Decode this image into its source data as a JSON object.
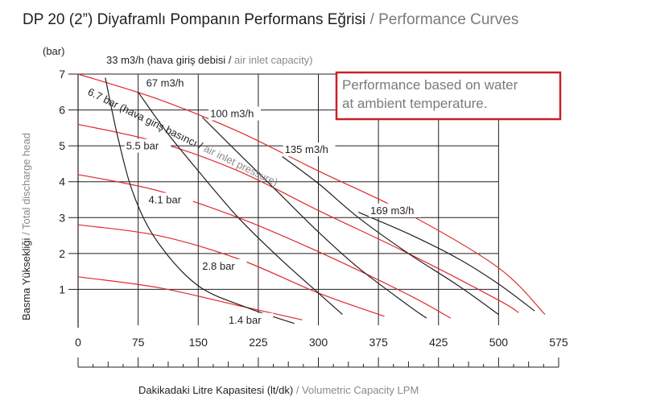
{
  "page": {
    "title_main": "DP 20 (2”) Diyaframlı Pompanın Performans Eğrisi",
    "title_sep": " / ",
    "title_secondary": "Performance Curves",
    "note_line1": "Performance based on water",
    "note_line2": "at ambient temperature."
  },
  "chart_data": {
    "type": "line",
    "title": "DP 20 (2”) Diyaframlı Pompanın Performans Eğrisi / Performance Curves",
    "xlabel": "Dakikadaki Litre Kapasitesi (lt/dk) / Volumetric Capacity LPM",
    "xlabel_primary": "Dakikadaki Litre Kapasitesi (lt/dk)",
    "xlabel_secondary": "Volumetric Capacity LPM",
    "ylabel": "Basma Yüksekliği / Total discharge head",
    "ylabel_primary": "Basma Yüksekliği",
    "ylabel_secondary": "Total discharge head",
    "yunit": "(bar)",
    "xlim": [
      0,
      575
    ],
    "ylim": [
      0,
      7
    ],
    "xticks": [
      0,
      75,
      150,
      225,
      300,
      375,
      425,
      500,
      575
    ],
    "xtick_labels": [
      "0",
      "75",
      "150",
      "225",
      "300",
      "375",
      "425",
      "500",
      "575"
    ],
    "yticks": [
      1,
      2,
      3,
      4,
      5,
      6,
      7
    ],
    "grid": true,
    "series_group_label": "6.7 bar (hava giriş basıncı / air inlet pressure)",
    "series_group_label_primary": "6.7 bar (hava giriş basıncı /",
    "series_group_label_secondary": " air inlet pressure)",
    "air_inlet_label_primary": "33 m3/h (hava giriş debisi / ",
    "air_inlet_label_secondary": "air inlet capacity)",
    "pressure_curves": [
      {
        "name": "6.7 bar",
        "color": "#e0282c",
        "points": [
          [
            0,
            7.0
          ],
          [
            100,
            6.3
          ],
          [
            200,
            5.4
          ],
          [
            300,
            4.3
          ],
          [
            400,
            3.1
          ],
          [
            500,
            1.6
          ],
          [
            558,
            0.3
          ]
        ]
      },
      {
        "name": "5.5 bar",
        "color": "#e0282c",
        "points": [
          [
            0,
            5.6
          ],
          [
            100,
            5.1
          ],
          [
            200,
            4.3
          ],
          [
            300,
            3.2
          ],
          [
            400,
            2.0
          ],
          [
            500,
            0.7
          ],
          [
            525,
            0.35
          ]
        ]
      },
      {
        "name": "4.1 bar",
        "color": "#e0282c",
        "points": [
          [
            0,
            4.2
          ],
          [
            100,
            3.75
          ],
          [
            200,
            3.0
          ],
          [
            300,
            2.05
          ],
          [
            400,
            0.85
          ],
          [
            440,
            0.2
          ]
        ]
      },
      {
        "name": "2.8 bar",
        "color": "#e0282c",
        "points": [
          [
            0,
            2.8
          ],
          [
            100,
            2.5
          ],
          [
            200,
            1.85
          ],
          [
            300,
            0.9
          ],
          [
            380,
            0.25
          ]
        ]
      },
      {
        "name": "1.4 bar",
        "color": "#e0282c",
        "points": [
          [
            0,
            1.35
          ],
          [
            100,
            1.05
          ],
          [
            200,
            0.55
          ],
          [
            280,
            0.15
          ]
        ]
      }
    ],
    "air_curves": [
      {
        "name": "33 m3/h",
        "color": "#231f20",
        "points": [
          [
            34,
            6.9
          ],
          [
            50,
            5.2
          ],
          [
            70,
            3.6
          ],
          [
            100,
            2.3
          ],
          [
            150,
            1.1
          ],
          [
            210,
            0.5
          ],
          [
            270,
            0.05
          ]
        ]
      },
      {
        "name": "67 m3/h",
        "color": "#231f20",
        "points": [
          [
            75,
            6.5
          ],
          [
            110,
            5.4
          ],
          [
            150,
            4.3
          ],
          [
            200,
            3.0
          ],
          [
            250,
            1.9
          ],
          [
            300,
            0.9
          ],
          [
            330,
            0.3
          ]
        ]
      },
      {
        "name": "100 m3/h",
        "color": "#231f20",
        "points": [
          [
            155,
            5.8
          ],
          [
            200,
            4.8
          ],
          [
            250,
            3.7
          ],
          [
            300,
            2.6
          ],
          [
            350,
            1.6
          ],
          [
            400,
            0.55
          ],
          [
            415,
            0.2
          ]
        ]
      },
      {
        "name": "135 m3/h",
        "color": "#231f20",
        "points": [
          [
            255,
            4.7
          ],
          [
            300,
            3.95
          ],
          [
            350,
            3.0
          ],
          [
            400,
            2.0
          ],
          [
            450,
            1.1
          ],
          [
            500,
            0.3
          ]
        ]
      },
      {
        "name": "169 m3/h",
        "color": "#231f20",
        "points": [
          [
            350,
            3.15
          ],
          [
            400,
            2.55
          ],
          [
            450,
            1.85
          ],
          [
            500,
            1.15
          ],
          [
            545,
            0.4
          ]
        ]
      }
    ],
    "curve_labels": [
      {
        "text": "67 m3/h",
        "x": 85,
        "y": 6.65
      },
      {
        "text": "100 m3/h",
        "x": 165,
        "y": 5.8
      },
      {
        "text": "135 m3/h",
        "x": 258,
        "y": 4.8
      },
      {
        "text": "169 m3/h",
        "x": 365,
        "y": 3.1
      },
      {
        "text": "5.5 bar",
        "x": 60,
        "y": 4.9
      },
      {
        "text": "4.1 bar",
        "x": 88,
        "y": 3.4
      },
      {
        "text": "2.8 bar",
        "x": 155,
        "y": 1.55
      },
      {
        "text": "1.4 bar",
        "x": 188,
        "y": 0.05
      }
    ]
  }
}
